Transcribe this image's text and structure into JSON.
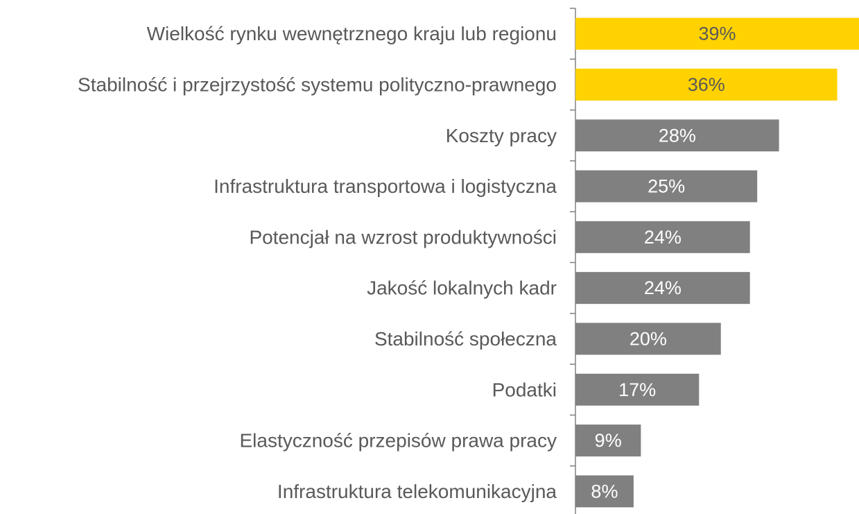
{
  "chart_data": {
    "type": "barh",
    "categories": [
      "Wielkość rynku wewnętrznego kraju lub regionu",
      "Stabilność i przejrzystość systemu polityczno-prawnego",
      "Koszty pracy",
      "Infrastruktura transportowa i logistyczna",
      "Potencjał na wzrost produktywności",
      "Jakość lokalnych kadr",
      "Stabilność społeczna",
      "Podatki",
      "Elastyczność przepisów prawa pracy",
      "Infrastruktura telekomunikacyjna"
    ],
    "values": [
      39,
      36,
      28,
      25,
      24,
      24,
      20,
      17,
      9,
      8
    ],
    "value_labels": [
      "39%",
      "36%",
      "28%",
      "25%",
      "24%",
      "24%",
      "20%",
      "17%",
      "9%",
      "8%"
    ],
    "colors": [
      "#ffd200",
      "#ffd200",
      "#808080",
      "#808080",
      "#808080",
      "#808080",
      "#808080",
      "#808080",
      "#808080",
      "#808080"
    ],
    "value_label_colors": [
      "#595959",
      "#595959",
      "#ffffff",
      "#ffffff",
      "#ffffff",
      "#ffffff",
      "#ffffff",
      "#ffffff",
      "#ffffff",
      "#ffffff"
    ],
    "xlim": [
      0,
      39
    ]
  }
}
